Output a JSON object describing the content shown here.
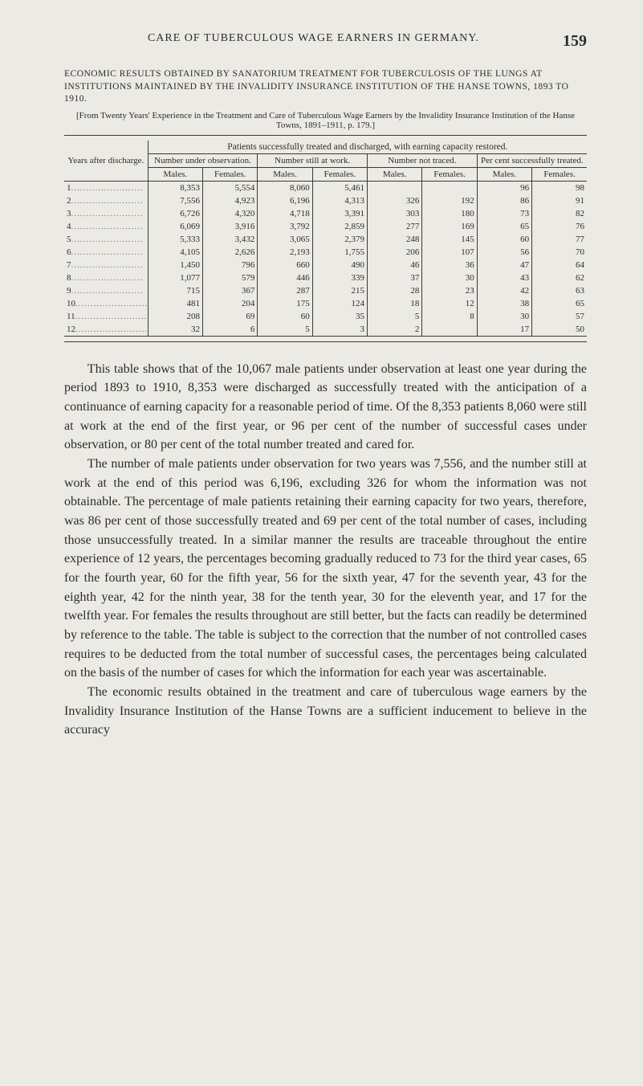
{
  "running_head": {
    "title": "CARE OF TUBERCULOUS WAGE EARNERS IN GERMANY.",
    "page_no": "159"
  },
  "caption": {
    "line1": "ECONOMIC RESULTS OBTAINED BY SANATORIUM TREATMENT FOR TUBERCULOSIS OF THE LUNGS AT INSTITUTIONS MAINTAINED BY THE INVALIDITY INSURANCE INSTITUTION OF THE HANSE TOWNS, 1893 TO 1910.",
    "sub": "[From Twenty Years' Experience in the Treatment and Care of Tuberculous Wage Earners by the Invalidity Insurance Institution of the Hanse Towns, 1891–1911, p. 179.]"
  },
  "table": {
    "super_header": "Patients successfully treated and discharged, with earning capacity restored.",
    "row_header": "Years after discharge.",
    "groups": [
      {
        "label": "Number under observation.",
        "sub": [
          "Males.",
          "Females."
        ]
      },
      {
        "label": "Number still at work.",
        "sub": [
          "Males.",
          "Females."
        ]
      },
      {
        "label": "Number not traced.",
        "sub": [
          "Males.",
          "Females."
        ]
      },
      {
        "label": "Per cent successfully treated.",
        "sub": [
          "Males.",
          "Females."
        ]
      }
    ],
    "rows": [
      {
        "yr": "1",
        "c": [
          "8,353",
          "5,554",
          "8,060",
          "5,461",
          "",
          "",
          "96",
          "98"
        ]
      },
      {
        "yr": "2",
        "c": [
          "7,556",
          "4,923",
          "6,196",
          "4,313",
          "326",
          "192",
          "86",
          "91"
        ]
      },
      {
        "yr": "3",
        "c": [
          "6,726",
          "4,320",
          "4,718",
          "3,391",
          "303",
          "180",
          "73",
          "82"
        ]
      },
      {
        "yr": "4",
        "c": [
          "6,069",
          "3,916",
          "3,792",
          "2,859",
          "277",
          "169",
          "65",
          "76"
        ]
      },
      {
        "yr": "5",
        "c": [
          "5,333",
          "3,432",
          "3,065",
          "2,379",
          "248",
          "145",
          "60",
          "77"
        ]
      },
      {
        "yr": "6",
        "c": [
          "4,105",
          "2,626",
          "2,193",
          "1,755",
          "206",
          "107",
          "56",
          "70"
        ]
      },
      {
        "yr": "7",
        "c": [
          "1,450",
          "796",
          "660",
          "490",
          "46",
          "36",
          "47",
          "64"
        ]
      },
      {
        "yr": "8",
        "c": [
          "1,077",
          "579",
          "446",
          "339",
          "37",
          "30",
          "43",
          "62"
        ]
      },
      {
        "yr": "9",
        "c": [
          "715",
          "367",
          "287",
          "215",
          "28",
          "23",
          "42",
          "63"
        ]
      },
      {
        "yr": "10",
        "c": [
          "481",
          "204",
          "175",
          "124",
          "18",
          "12",
          "38",
          "65"
        ]
      },
      {
        "yr": "11",
        "c": [
          "208",
          "69",
          "60",
          "35",
          "5",
          "8",
          "30",
          "57"
        ]
      },
      {
        "yr": "12",
        "c": [
          "32",
          "6",
          "5",
          "3",
          "2",
          "",
          "17",
          "50"
        ]
      }
    ]
  },
  "paragraphs": [
    "This table shows that of the 10,067 male patients under observation at least one year during the period 1893 to 1910, 8,353 were discharged as successfully treated with the anticipation of a continuance of earning capacity for a reasonable period of time. Of the 8,353 patients 8,060 were still at work at the end of the first year, or 96 per cent of the number of successful cases under observation, or 80 per cent of the total number treated and cared for.",
    "The number of male patients under observation for two years was 7,556, and the number still at work at the end of this period was 6,196, excluding 326 for whom the information was not obtainable. The percentage of male patients retaining their earning capacity for two years, therefore, was 86 per cent of those successfully treated and 69 per cent of the total number of cases, including those unsuccessfully treated. In a similar manner the results are traceable throughout the entire experience of 12 years, the percentages becoming gradually reduced to 73 for the third year cases, 65 for the fourth year, 60 for the fifth year, 56 for the sixth year, 47 for the seventh year, 43 for the eighth year, 42 for the ninth year, 38 for the tenth year, 30 for the eleventh year, and 17 for the twelfth year. For females the results throughout are still better, but the facts can readily be determined by reference to the table. The table is subject to the correction that the number of not controlled cases requires to be deducted from the total number of successful cases, the percentages being calculated on the basis of the number of cases for which the information for each year was ascertainable.",
    "The economic results obtained in the treatment and care of tuberculous wage earners by the Invalidity Insurance Institution of the Hanse Towns are a sufficient inducement to believe in the accuracy"
  ]
}
